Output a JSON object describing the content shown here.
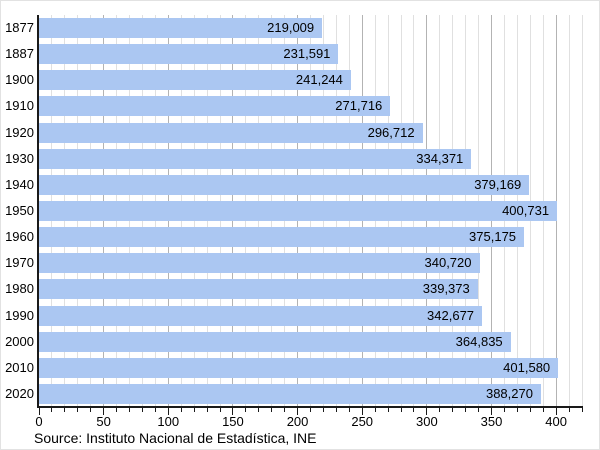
{
  "chart_data": {
    "type": "bar",
    "orientation": "horizontal",
    "title": "",
    "xlabel": "",
    "ylabel": "",
    "categories": [
      "1877",
      "1887",
      "1900",
      "1910",
      "1920",
      "1930",
      "1940",
      "1950",
      "1960",
      "1970",
      "1980",
      "1990",
      "2000",
      "2010",
      "2020"
    ],
    "values": [
      219009,
      231591,
      241244,
      271716,
      296712,
      334371,
      379169,
      400731,
      375175,
      340720,
      339373,
      342677,
      364835,
      401580,
      388270
    ],
    "value_labels": [
      "219,009",
      "231,591",
      "241,244",
      "271,716",
      "296,712",
      "334,371",
      "379,169",
      "400,731",
      "375,175",
      "340,720",
      "339,373",
      "342,677",
      "364,835",
      "401,580",
      "388,270"
    ],
    "xlim": [
      0,
      420
    ],
    "x_axis_unit_divisor": 1000,
    "x_major_tick_values": [
      0,
      50,
      100,
      150,
      200,
      250,
      300,
      350,
      400
    ],
    "x_tick_labels": [
      "0",
      "50",
      "100",
      "150",
      "200",
      "250",
      "300",
      "350",
      "400"
    ],
    "x_minor_tick_step": 10,
    "grid": true,
    "legend": false,
    "colors": {
      "bar": "#abc7f2",
      "grid_minor": "#e0e0e0",
      "grid_major": "#b3b3b3",
      "axis": "#1a1a1a",
      "text": "#000000",
      "background": "#ffffff"
    }
  },
  "source": {
    "text": "Source: Instituto Nacional de Estadística, INE"
  }
}
